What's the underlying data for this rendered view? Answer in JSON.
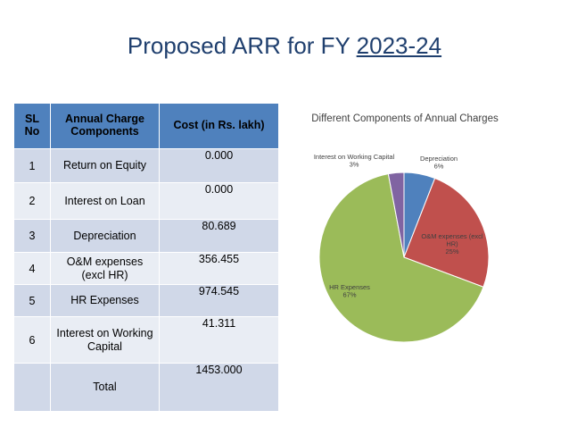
{
  "title": {
    "prefix": "Proposed ARR for FY ",
    "year": "2023-24"
  },
  "table": {
    "headers": {
      "sl": "SL No",
      "component": "Annual Charge Components",
      "cost": "Cost  (in Rs. lakh)"
    },
    "rows": [
      {
        "sl": "1",
        "component": "Return on Equity",
        "cost": "0.000"
      },
      {
        "sl": "2",
        "component": "Interest on Loan",
        "cost": "0.000"
      },
      {
        "sl": "3",
        "component": "Depreciation",
        "cost": "80.689"
      },
      {
        "sl": "4",
        "component": "O&M  expenses (excl HR)",
        "cost": "356.455"
      },
      {
        "sl": "5",
        "component": "HR Expenses",
        "cost": "974.545"
      },
      {
        "sl": "6",
        "component": "Interest on Working Capital",
        "cost": "41.311"
      },
      {
        "sl": "",
        "component": "Total",
        "cost": "1453.000"
      }
    ]
  },
  "chart_data": {
    "type": "pie",
    "title": "Different Components of Annual Charges",
    "slices": [
      {
        "label": "Depreciation",
        "value": 6,
        "percent_label": "6%",
        "color": "#4f81bd"
      },
      {
        "label": "O&M  expenses (excl HR)",
        "value": 25,
        "percent_label": "25%",
        "color": "#c0504d"
      },
      {
        "label": "HR Expenses",
        "value": 67,
        "percent_label": "67%",
        "color": "#9bbb59"
      },
      {
        "label": "Interest on Working Capital",
        "value": 3,
        "percent_label": "3%",
        "color": "#8064a2"
      }
    ],
    "legend": "none",
    "data_labels": "category name and percentage"
  }
}
